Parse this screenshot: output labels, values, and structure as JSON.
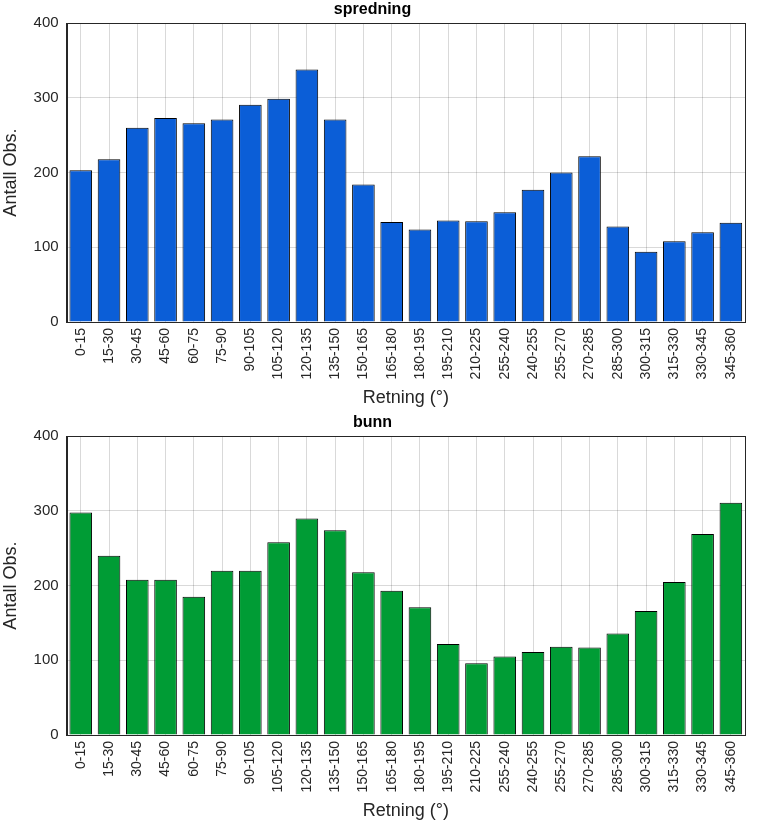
{
  "chart_data": [
    {
      "type": "bar",
      "title": "spredning",
      "categories": [
        "0-15",
        "15-30",
        "30-45",
        "45-60",
        "60-75",
        "75-90",
        "90-105",
        "105-120",
        "120-135",
        "135-150",
        "150-165",
        "165-180",
        "180-195",
        "195-210",
        "210-225",
        "255-240",
        "240-255",
        "255-270",
        "270-285",
        "285-300",
        "300-315",
        "315-330",
        "330-345",
        "345-360"
      ],
      "values": [
        203,
        218,
        260,
        273,
        266,
        271,
        291,
        299,
        338,
        271,
        184,
        134,
        124,
        136,
        135,
        147,
        177,
        200,
        222,
        128,
        94,
        108,
        120,
        133
      ],
      "color": "#0b5ed7",
      "x_label": "Retning (°)",
      "y_label": "Antall Obs.",
      "ylim": [
        0,
        400
      ],
      "yticks": [
        0,
        100,
        200,
        300,
        400
      ],
      "grid": true
    },
    {
      "type": "bar",
      "title": "bunn",
      "categories": [
        "0-15",
        "15-30",
        "30-45",
        "45-60",
        "60-75",
        "75-90",
        "90-105",
        "105-120",
        "120-135",
        "135-150",
        "150-165",
        "165-180",
        "180-195",
        "195-210",
        "210-225",
        "255-240",
        "240-255",
        "255-270",
        "270-285",
        "285-300",
        "300-315",
        "315-330",
        "330-345",
        "345-360"
      ],
      "values": [
        298,
        240,
        208,
        208,
        185,
        220,
        220,
        258,
        290,
        274,
        218,
        193,
        171,
        122,
        96,
        105,
        111,
        118,
        117,
        136,
        166,
        205,
        269,
        311
      ],
      "color": "#009c35",
      "x_label": "Retning (°)",
      "y_label": "Antall Obs.",
      "ylim": [
        0,
        400
      ],
      "yticks": [
        0,
        100,
        200,
        300,
        400
      ],
      "grid": true
    }
  ]
}
